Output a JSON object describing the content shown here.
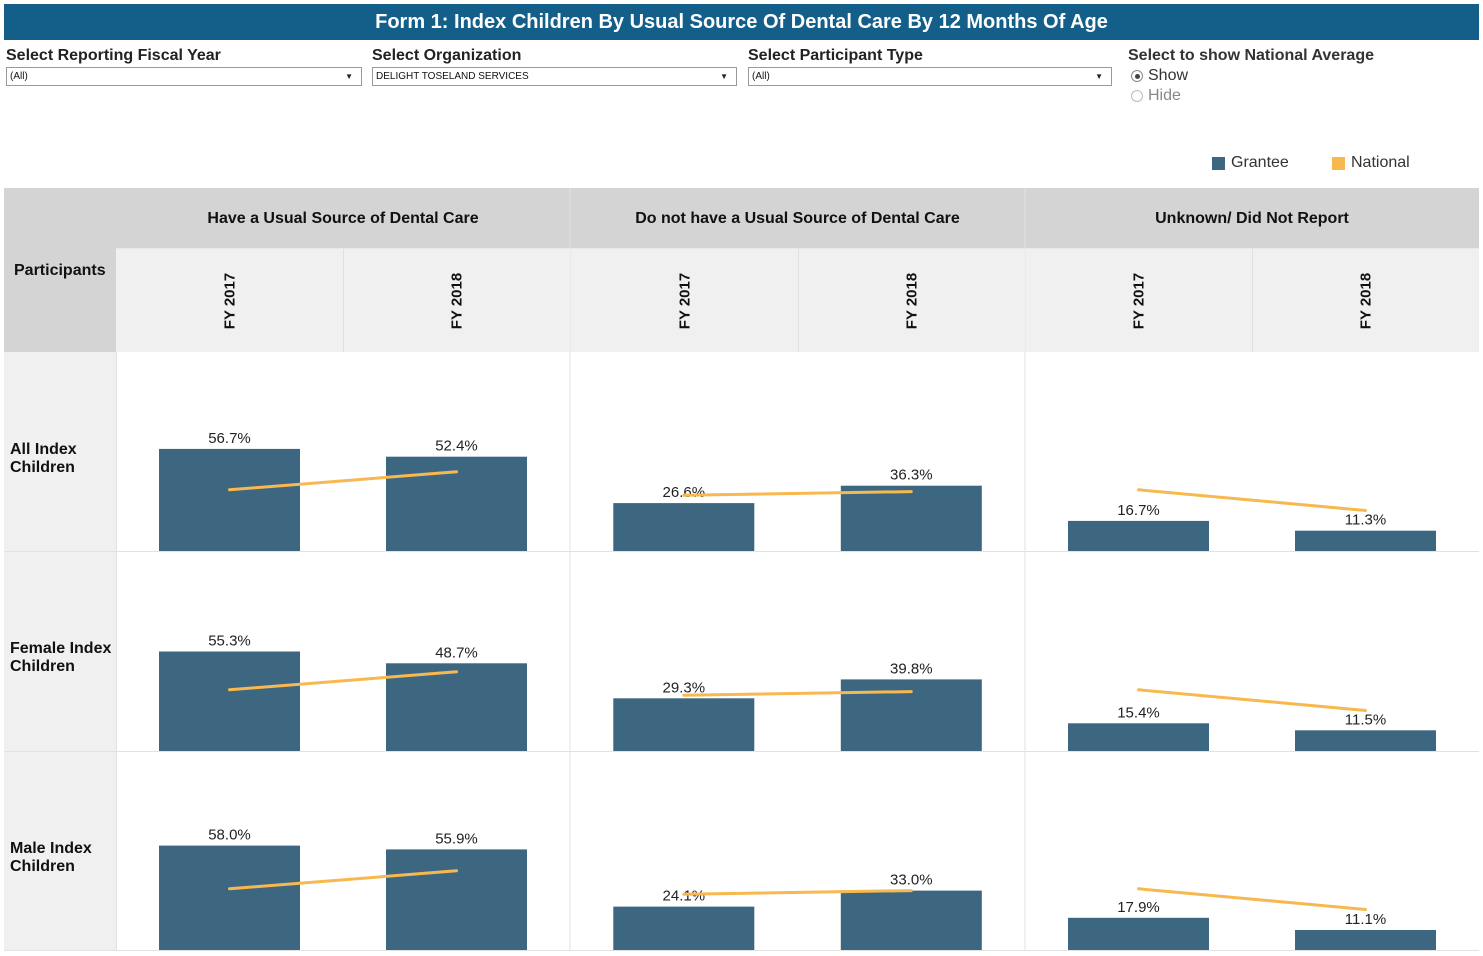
{
  "title": "Form 1: Index Children By Usual Source Of Dental Care By 12 Months Of Age",
  "filters": {
    "fiscal_year": {
      "label": "Select Reporting Fiscal Year",
      "value": "(All)"
    },
    "organization": {
      "label": "Select Organization",
      "value": "DELIGHT TOSELAND SERVICES"
    },
    "participant_type": {
      "label": "Select Participant Type",
      "value": "(All)"
    }
  },
  "national_toggle": {
    "label": "Select to show National Average",
    "options": [
      "Show",
      "Hide"
    ],
    "selected": "Show"
  },
  "colors": {
    "grantee": "#3d6781",
    "national": "#f7b84f",
    "header_dark": "#d4d4d4",
    "header_light": "#f0f0f0"
  },
  "table": {
    "row_header": "Participants",
    "rows": [
      "All Index Children",
      "Female Index Children",
      "Male Index Children"
    ],
    "row_label_lines": [
      [
        "All Index",
        "Children"
      ],
      [
        "Female Index",
        "Children"
      ],
      [
        "Male Index",
        "Children"
      ]
    ],
    "columns": [
      "Have a Usual Source of Dental Care",
      "Do not have a Usual Source of Dental Care",
      "Unknown/ Did Not Report"
    ],
    "years": [
      "FY 2017",
      "FY 2018"
    ]
  },
  "chart_data": {
    "type": "bar",
    "title": "Form 1: Index Children By Usual Source Of Dental Care By 12 Months Of Age",
    "categories": [
      "FY 2017",
      "FY 2018"
    ],
    "legend": [
      "Grantee",
      "National"
    ],
    "legend_position": "top-right",
    "ylim": [
      0,
      100
    ],
    "unit": "%",
    "panels": [
      {
        "row": "All Index Children",
        "column": "Have a Usual Source of Dental Care",
        "grantee": [
          56.7,
          52.4
        ],
        "grantee_labels": [
          "56.7%",
          "52.4%"
        ],
        "national": [
          34.0,
          44.0
        ]
      },
      {
        "row": "All Index Children",
        "column": "Do not have a Usual Source of Dental Care",
        "grantee": [
          26.6,
          36.3
        ],
        "grantee_labels": [
          "26.6%",
          "36.3%"
        ],
        "national": [
          31.0,
          33.0
        ]
      },
      {
        "row": "All Index Children",
        "column": "Unknown/ Did Not Report",
        "grantee": [
          16.7,
          11.3
        ],
        "grantee_labels": [
          "16.7%",
          "11.3%"
        ],
        "national": [
          34.0,
          22.5
        ]
      },
      {
        "row": "Female Index Children",
        "column": "Have a Usual Source of Dental Care",
        "grantee": [
          55.3,
          48.7
        ],
        "grantee_labels": [
          "55.3%",
          "48.7%"
        ],
        "national": [
          34.0,
          44.0
        ]
      },
      {
        "row": "Female Index Children",
        "column": "Do not have a Usual Source of Dental Care",
        "grantee": [
          29.3,
          39.8
        ],
        "grantee_labels": [
          "29.3%",
          "39.8%"
        ],
        "national": [
          31.0,
          33.0
        ]
      },
      {
        "row": "Female Index Children",
        "column": "Unknown/ Did Not Report",
        "grantee": [
          15.4,
          11.5
        ],
        "grantee_labels": [
          "15.4%",
          "11.5%"
        ],
        "national": [
          34.0,
          22.5
        ]
      },
      {
        "row": "Male Index Children",
        "column": "Have a Usual Source of Dental Care",
        "grantee": [
          58.0,
          55.9
        ],
        "grantee_labels": [
          "58.0%",
          "55.9%"
        ],
        "national": [
          34.0,
          44.0
        ]
      },
      {
        "row": "Male Index Children",
        "column": "Do not have a Usual Source of Dental Care",
        "grantee": [
          24.1,
          33.0
        ],
        "grantee_labels": [
          "24.1%",
          "33.0%"
        ],
        "national": [
          31.0,
          33.0
        ]
      },
      {
        "row": "Male Index Children",
        "column": "Unknown/ Did Not Report",
        "grantee": [
          17.9,
          11.1
        ],
        "grantee_labels": [
          "17.9%",
          "11.1%"
        ],
        "national": [
          34.0,
          22.5
        ]
      }
    ]
  }
}
